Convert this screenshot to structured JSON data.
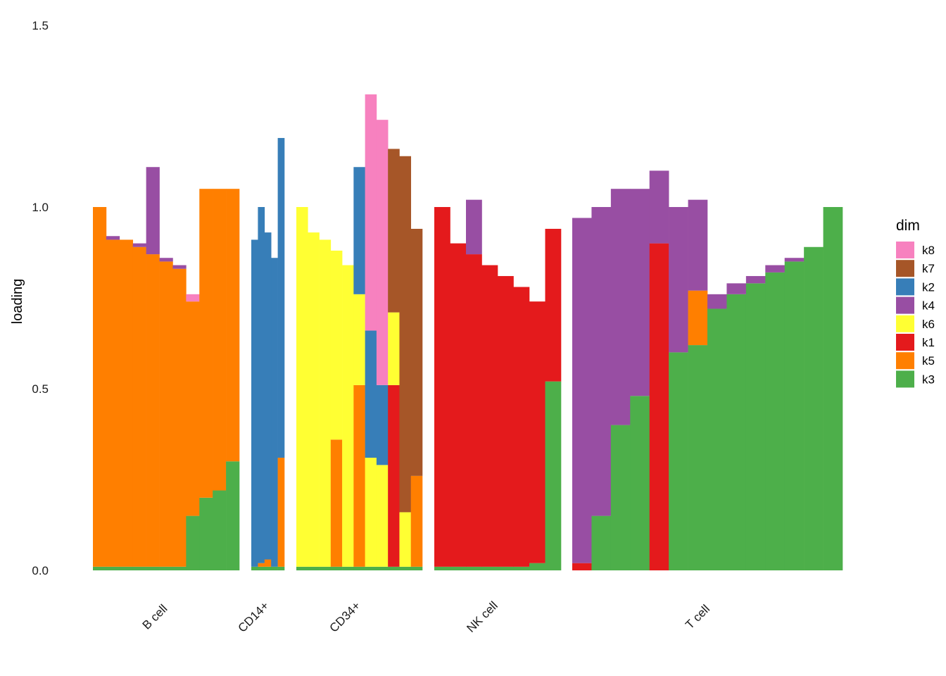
{
  "chart_data": {
    "type": "bar",
    "stacked": true,
    "ylabel": "loading",
    "xlabel": "",
    "ylim": [
      0,
      1.5
    ],
    "yticks": [
      {
        "value": 0.0,
        "label": "0.0"
      },
      {
        "value": 0.5,
        "label": "0.5"
      },
      {
        "value": 1.0,
        "label": "1.0"
      },
      {
        "value": 1.5,
        "label": "1.5"
      }
    ],
    "grid": false,
    "legend": {
      "title": "dim",
      "position": "right",
      "entries": [
        {
          "name": "k8",
          "color": "#F781BF"
        },
        {
          "name": "k7",
          "color": "#A65628"
        },
        {
          "name": "k2",
          "color": "#377EB8"
        },
        {
          "name": "k4",
          "color": "#984EA3"
        },
        {
          "name": "k6",
          "color": "#FFFF33"
        },
        {
          "name": "k1",
          "color": "#E41A1C"
        },
        {
          "name": "k5",
          "color": "#FF7F00"
        },
        {
          "name": "k3",
          "color": "#4DAF4A"
        }
      ]
    },
    "stack_order": [
      "k3",
      "k5",
      "k1",
      "k6",
      "k4",
      "k2",
      "k7",
      "k8"
    ],
    "groups": [
      {
        "name": "B cell",
        "bars": [
          {
            "k3": 0.01,
            "k5": 0.99
          },
          {
            "k3": 0.01,
            "k5": 0.9,
            "k4": 0.01
          },
          {
            "k3": 0.01,
            "k5": 0.9,
            "k4": 0.0
          },
          {
            "k3": 0.01,
            "k5": 0.88,
            "k4": 0.01
          },
          {
            "k3": 0.01,
            "k5": 0.86,
            "k4": 0.24
          },
          {
            "k3": 0.01,
            "k5": 0.84,
            "k4": 0.01
          },
          {
            "k3": 0.01,
            "k5": 0.82,
            "k4": 0.01
          },
          {
            "k3": 0.15,
            "k5": 0.59,
            "k8": 0.02
          },
          {
            "k3": 0.2,
            "k5": 0.85
          },
          {
            "k3": 0.22,
            "k5": 0.83
          },
          {
            "k3": 0.3,
            "k5": 0.75
          }
        ]
      },
      {
        "name": "CD14+",
        "bars": [
          {
            "k3": 0.01,
            "k5": 0.0,
            "k2": 0.9
          },
          {
            "k3": 0.01,
            "k5": 0.01,
            "k2": 0.98
          },
          {
            "k3": 0.01,
            "k5": 0.02,
            "k2": 0.9
          },
          {
            "k3": 0.01,
            "k5": 0.0,
            "k2": 0.85
          },
          {
            "k3": 0.01,
            "k5": 0.3,
            "k2": 0.88
          }
        ]
      },
      {
        "name": "CD34+",
        "bars": [
          {
            "k3": 0.01,
            "k6": 0.99
          },
          {
            "k3": 0.01,
            "k5": 0.0,
            "k6": 0.92
          },
          {
            "k3": 0.01,
            "k5": 0.0,
            "k6": 0.9
          },
          {
            "k3": 0.01,
            "k5": 0.35,
            "k6": 0.52
          },
          {
            "k3": 0.01,
            "k5": 0.0,
            "k6": 0.83
          },
          {
            "k3": 0.01,
            "k5": 0.5,
            "k6": 0.25,
            "k2": 0.35
          },
          {
            "k3": 0.01,
            "k6": 0.3,
            "k2": 0.35,
            "k8": 0.65
          },
          {
            "k3": 0.01,
            "k6": 0.28,
            "k2": 0.22,
            "k8": 0.73
          },
          {
            "k3": 0.01,
            "k1": 0.5,
            "k6": 0.2,
            "k7": 0.45
          },
          {
            "k3": 0.01,
            "k6": 0.15,
            "k7": 0.98
          },
          {
            "k3": 0.01,
            "k5": 0.25,
            "k7": 0.68
          }
        ]
      },
      {
        "name": "NK cell",
        "bars": [
          {
            "k3": 0.01,
            "k1": 0.99
          },
          {
            "k3": 0.01,
            "k1": 0.89
          },
          {
            "k3": 0.01,
            "k1": 0.86,
            "k4": 0.15
          },
          {
            "k3": 0.01,
            "k1": 0.83
          },
          {
            "k3": 0.01,
            "k1": 0.8
          },
          {
            "k3": 0.01,
            "k1": 0.77
          },
          {
            "k3": 0.02,
            "k1": 0.72
          },
          {
            "k3": 0.52,
            "k1": 0.42
          }
        ]
      },
      {
        "name": "T cell",
        "bars": [
          {
            "k3": 0.0,
            "k1": 0.02,
            "k4": 0.95
          },
          {
            "k3": 0.15,
            "k4": 0.85
          },
          {
            "k3": 0.4,
            "k4": 0.65
          },
          {
            "k3": 0.48,
            "k4": 0.57
          },
          {
            "k3": 0.0,
            "k1": 0.9,
            "k4": 0.2
          },
          {
            "k3": 0.6,
            "k4": 0.4
          },
          {
            "k3": 0.62,
            "k5": 0.15,
            "k4": 0.25
          },
          {
            "k3": 0.72,
            "k4": 0.04
          },
          {
            "k3": 0.76,
            "k4": 0.03
          },
          {
            "k3": 0.79,
            "k4": 0.02
          },
          {
            "k3": 0.82,
            "k4": 0.02
          },
          {
            "k3": 0.85,
            "k4": 0.01
          },
          {
            "k3": 0.89,
            "k4": 0.0
          },
          {
            "k3": 1.0
          }
        ]
      }
    ]
  }
}
